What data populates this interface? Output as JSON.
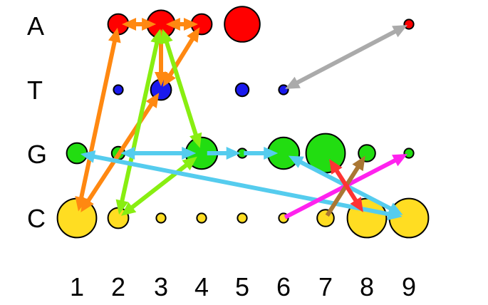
{
  "rows": [
    "A",
    "T",
    "G",
    "C"
  ],
  "columns": [
    "1",
    "2",
    "3",
    "4",
    "5",
    "6",
    "7",
    "8",
    "9"
  ],
  "colors": {
    "A": "#ff0000",
    "T": "#1a1aee",
    "G": "#22dd11",
    "C": "#ffdd22"
  },
  "nodes": [
    {
      "row": "A",
      "col": 2,
      "size": 2
    },
    {
      "row": "A",
      "col": 3,
      "size": 3
    },
    {
      "row": "A",
      "col": 4,
      "size": 2
    },
    {
      "row": "A",
      "col": 5,
      "size": 4
    },
    {
      "row": "A",
      "col": 9,
      "size": 0.5
    },
    {
      "row": "T",
      "col": 2,
      "size": 0.5
    },
    {
      "row": "T",
      "col": 3,
      "size": 2
    },
    {
      "row": "T",
      "col": 5,
      "size": 1
    },
    {
      "row": "T",
      "col": 6,
      "size": 0.5
    },
    {
      "row": "G",
      "col": 1,
      "size": 2
    },
    {
      "row": "G",
      "col": 2,
      "size": 1
    },
    {
      "row": "G",
      "col": 4,
      "size": 3.5
    },
    {
      "row": "G",
      "col": 5,
      "size": 0.5
    },
    {
      "row": "G",
      "col": 6,
      "size": 3.5
    },
    {
      "row": "G",
      "col": 7,
      "size": 4.5
    },
    {
      "row": "G",
      "col": 8,
      "size": 1.5
    },
    {
      "row": "G",
      "col": 9,
      "size": 0.5
    },
    {
      "row": "C",
      "col": 1,
      "size": 4.5
    },
    {
      "row": "C",
      "col": 2,
      "size": 2
    },
    {
      "row": "C",
      "col": 3,
      "size": 0.5
    },
    {
      "row": "C",
      "col": 4,
      "size": 0.5
    },
    {
      "row": "C",
      "col": 5,
      "size": 0.5
    },
    {
      "row": "C",
      "col": 6,
      "size": 0.5
    },
    {
      "row": "C",
      "col": 7,
      "size": 1.5
    },
    {
      "row": "C",
      "col": 8,
      "size": 4.5
    },
    {
      "row": "C",
      "col": 9,
      "size": 4.5
    }
  ],
  "edges": [
    {
      "from": [
        "A",
        3
      ],
      "to": [
        "A",
        2
      ],
      "color": "#ff8811",
      "both": true
    },
    {
      "from": [
        "A",
        3
      ],
      "to": [
        "A",
        4
      ],
      "color": "#ff8811",
      "both": true
    },
    {
      "from": [
        "A",
        3
      ],
      "to": [
        "T",
        3
      ],
      "color": "#ff8811",
      "both": true
    },
    {
      "from": [
        "A",
        4
      ],
      "to": [
        "T",
        3
      ],
      "color": "#ff8811",
      "both": true
    },
    {
      "from": [
        "A",
        2
      ],
      "to": [
        "C",
        1
      ],
      "color": "#ff8811",
      "both": true
    },
    {
      "from": [
        "T",
        3
      ],
      "to": [
        "C",
        1
      ],
      "color": "#ff8811",
      "both": true
    },
    {
      "from": [
        "A",
        3
      ],
      "to": [
        "G",
        4
      ],
      "color": "#88ee11",
      "both": true
    },
    {
      "from": [
        "A",
        3
      ],
      "to": [
        "C",
        2
      ],
      "color": "#88ee11",
      "both": true
    },
    {
      "from": [
        "G",
        4
      ],
      "to": [
        "C",
        2
      ],
      "color": "#88ee11",
      "both": true
    },
    {
      "from": [
        "T",
        6
      ],
      "to": [
        "A",
        9
      ],
      "color": "#aaaaaa",
      "both": true
    },
    {
      "from": [
        "G",
        2
      ],
      "to": [
        "G",
        4
      ],
      "color": "#55ccee",
      "both": true
    },
    {
      "from": [
        "G",
        4
      ],
      "to": [
        "G",
        5
      ],
      "color": "#55ccee",
      "both": false
    },
    {
      "from": [
        "G",
        5
      ],
      "to": [
        "G",
        6
      ],
      "color": "#55ccee",
      "both": false
    },
    {
      "from": [
        "G",
        1
      ],
      "to": [
        "C",
        9
      ],
      "color": "#55ccee",
      "both": true
    },
    {
      "from": [
        "G",
        6
      ],
      "to": [
        "C",
        9
      ],
      "color": "#55ccee",
      "both": true
    },
    {
      "from": [
        "C",
        6
      ],
      "to": [
        "G",
        9
      ],
      "color": "#ff22ee",
      "both": false
    },
    {
      "from": [
        "C",
        7
      ],
      "to": [
        "G",
        8
      ],
      "color": "#aa7733",
      "both": false
    },
    {
      "from": [
        "G",
        7
      ],
      "to": [
        "C",
        8
      ],
      "color": "#ff3333",
      "both": true
    }
  ]
}
